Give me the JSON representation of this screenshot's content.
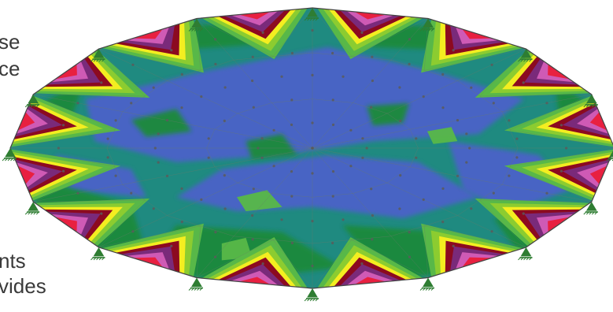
{
  "background_text": [
    {
      "id": "frag-1",
      "text": "se"
    },
    {
      "id": "frag-2",
      "text": "ce"
    },
    {
      "id": "frag-3",
      "text": "nts"
    },
    {
      "id": "frag-4",
      "text": "vides"
    }
  ],
  "plate": {
    "sides": 16,
    "supports": 16,
    "colors": {
      "edge_outline": "#444444",
      "mesh_line": "#6a7a6a",
      "support": "#2e7d32",
      "node": "#5a5a5a",
      "blue": "#4c62c8",
      "teal": "#1f8a80",
      "dark_green": "#1a8a3a",
      "mid_green": "#58b848",
      "light_green": "#8ccc30",
      "yellow": "#f4ee20",
      "dark_red": "#8c0a20",
      "purple": "#7a2a7a",
      "pink": "#cf5ab5",
      "red": "#e82040"
    }
  }
}
